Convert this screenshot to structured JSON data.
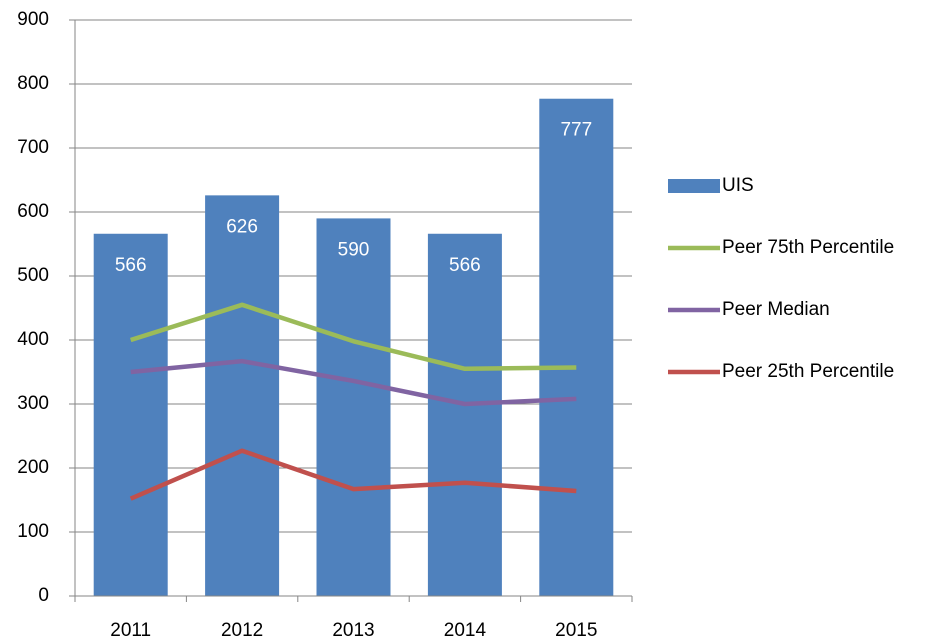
{
  "chart_data": {
    "type": "bar",
    "categories": [
      "2011",
      "2012",
      "2013",
      "2014",
      "2015"
    ],
    "series": [
      {
        "name": "UIS",
        "type": "bar",
        "color": "#4f81bd",
        "values": [
          566,
          626,
          590,
          566,
          777
        ]
      },
      {
        "name": "Peer 75th Percentile",
        "type": "line",
        "color": "#9bbb59",
        "values": [
          400,
          455,
          398,
          355,
          357
        ]
      },
      {
        "name": "Peer Median",
        "type": "line",
        "color": "#8064a2",
        "values": [
          350,
          367,
          336,
          300,
          308
        ]
      },
      {
        "name": "Peer 25th Percentile",
        "type": "line",
        "color": "#c0504d",
        "values": [
          152,
          227,
          167,
          177,
          164
        ]
      }
    ],
    "ylim": [
      0,
      900
    ],
    "yticks": [
      0,
      100,
      200,
      300,
      400,
      500,
      600,
      700,
      800,
      900
    ],
    "grid": true,
    "legend": "right",
    "data_labels": true
  }
}
